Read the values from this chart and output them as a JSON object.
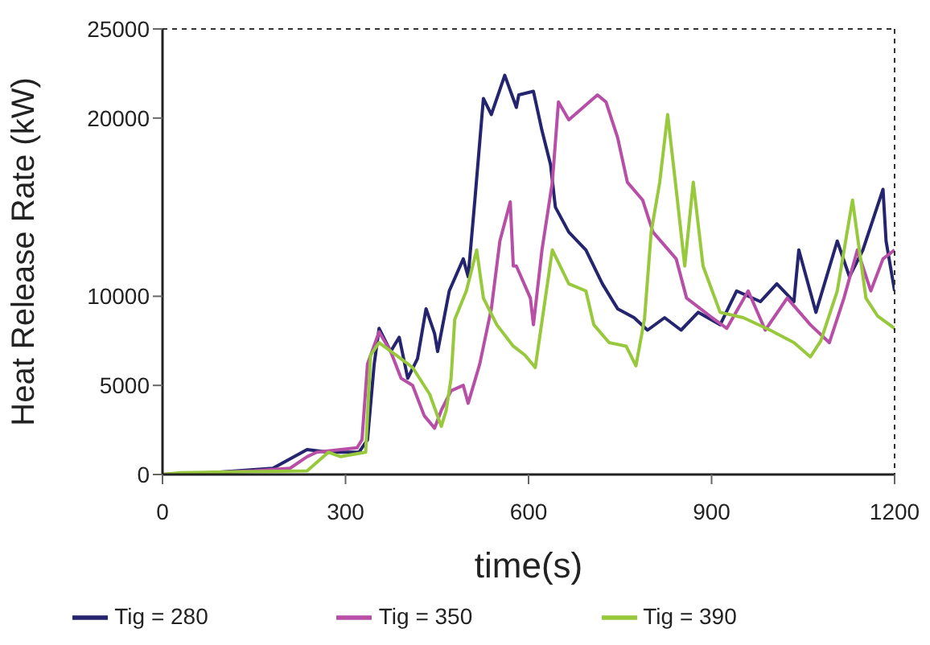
{
  "chart_data": {
    "type": "line",
    "xlabel": "time(s)",
    "ylabel": "Heat Release Rate (kW)",
    "xlim": [
      0,
      1200
    ],
    "xticks": [
      0,
      300,
      600,
      900,
      1200
    ],
    "ylim": [
      0,
      25000
    ],
    "yticks": [
      0,
      5000,
      10000,
      20000,
      25000
    ],
    "grid": false,
    "legend": "bottom",
    "marker": "none",
    "line_style": "solid",
    "series": [
      {
        "name": "Tig = 280",
        "color": "#25246f",
        "x": [
          0,
          80,
          181,
          237,
          272,
          322,
          336,
          347,
          355,
          374,
          388,
          402,
          418,
          432,
          446,
          451,
          470,
          493,
          501,
          512,
          526,
          539,
          561,
          580,
          584,
          608,
          622,
          636,
          644,
          666,
          694,
          721,
          746,
          773,
          795,
          823,
          850,
          878,
          914,
          941,
          980,
          1007,
          1035,
          1043,
          1071,
          1106,
          1126,
          1148,
          1181,
          1186,
          1200
        ],
        "values": [
          0,
          100,
          350,
          1400,
          1250,
          1250,
          1950,
          6200,
          8200,
          6900,
          7700,
          5400,
          6500,
          9300,
          7900,
          6900,
          10300,
          12100,
          11100,
          15400,
          21100,
          20200,
          22400,
          20600,
          21300,
          21500,
          19300,
          17400,
          15000,
          13600,
          12600,
          10700,
          9300,
          8800,
          8100,
          8800,
          8100,
          9100,
          8400,
          10300,
          9700,
          10700,
          9700,
          12600,
          9100,
          13100,
          11100,
          12600,
          16000,
          13100,
          10300
        ]
      },
      {
        "name": "Tig = 350",
        "color": "#b84fa6",
        "x": [
          0,
          150,
          209,
          237,
          253,
          319,
          327,
          336,
          355,
          374,
          391,
          410,
          429,
          446,
          457,
          473,
          493,
          501,
          520,
          539,
          553,
          570,
          575,
          580,
          603,
          608,
          622,
          639,
          649,
          666,
          713,
          727,
          746,
          762,
          787,
          804,
          842,
          859,
          897,
          925,
          960,
          988,
          1024,
          1062,
          1093,
          1117,
          1139,
          1161,
          1181,
          1200
        ],
        "values": [
          0,
          200,
          350,
          1000,
          1250,
          1500,
          1950,
          6200,
          8000,
          6900,
          5400,
          5000,
          3300,
          2600,
          3600,
          4700,
          5000,
          4000,
          6200,
          9300,
          13100,
          15300,
          11700,
          11700,
          9900,
          8400,
          12600,
          16400,
          20900,
          19900,
          21300,
          20900,
          18900,
          16400,
          15400,
          13600,
          12100,
          9900,
          8900,
          8200,
          10300,
          8100,
          9900,
          8400,
          7400,
          9900,
          12600,
          10300,
          12100,
          12600
        ]
      },
      {
        "name": "Tig = 390",
        "color": "#98c93c",
        "x": [
          0,
          30,
          237,
          272,
          292,
          333,
          341,
          355,
          383,
          410,
          438,
          457,
          465,
          473,
          479,
          498,
          515,
          526,
          548,
          575,
          594,
          611,
          625,
          639,
          666,
          694,
          707,
          732,
          760,
          776,
          790,
          801,
          815,
          828,
          842,
          856,
          870,
          886,
          914,
          952,
          996,
          1035,
          1062,
          1079,
          1106,
          1131,
          1153,
          1172,
          1200
        ],
        "values": [
          0,
          100,
          200,
          1250,
          1000,
          1250,
          6700,
          7400,
          6700,
          6000,
          4500,
          2700,
          3600,
          5400,
          8700,
          10300,
          12600,
          9900,
          8400,
          7200,
          6700,
          6000,
          9300,
          12600,
          10700,
          10300,
          8400,
          7400,
          7200,
          6100,
          8700,
          13600,
          16400,
          20200,
          16000,
          11700,
          16400,
          11700,
          9100,
          8800,
          8100,
          7400,
          6600,
          7500,
          10300,
          15400,
          9900,
          8900,
          8200
        ]
      }
    ]
  }
}
